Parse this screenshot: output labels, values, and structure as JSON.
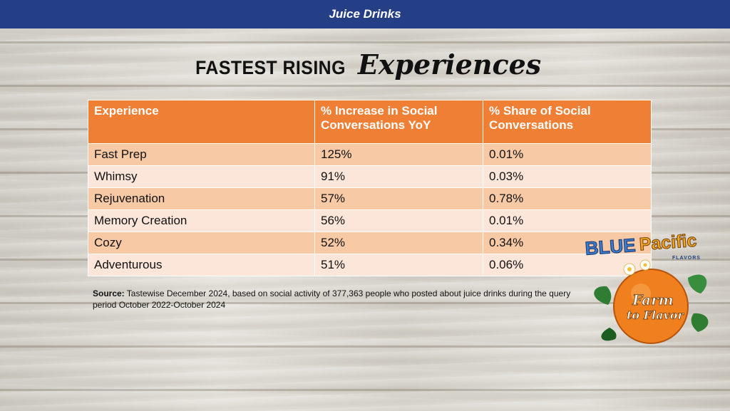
{
  "banner": {
    "title": "Juice Drinks"
  },
  "headline": {
    "main": "FASTEST RISING",
    "script": "Experiences"
  },
  "table": {
    "headers": [
      "Experience",
      "% Increase in Social Conversations YoY",
      "% Share of Social Conversations"
    ],
    "rows": [
      [
        "Fast Prep",
        "125%",
        "0.01%"
      ],
      [
        "Whimsy",
        "91%",
        "0.03%"
      ],
      [
        "Rejuvenation",
        "57%",
        "0.78%"
      ],
      [
        "Memory Creation",
        "56%",
        "0.01%"
      ],
      [
        "Cozy",
        "52%",
        "0.34%"
      ],
      [
        "Adventurous",
        "51%",
        "0.06%"
      ]
    ]
  },
  "source": {
    "label": "Source:",
    "text": " Tastewise December 2024, based on social activity of 377,363 people who posted about juice drinks during the query period October 2022-October 2024"
  },
  "logo": {
    "brand_a": "BLUE",
    "brand_b": "Pacific",
    "sub": "FLAVORS",
    "emblem_line1": "Farm",
    "emblem_line2": "to Flavor"
  },
  "colors": {
    "banner": "#243f86",
    "header_row": "#f07f36",
    "row_odd": "#f7c9a5",
    "row_even": "#fbe6d9"
  }
}
